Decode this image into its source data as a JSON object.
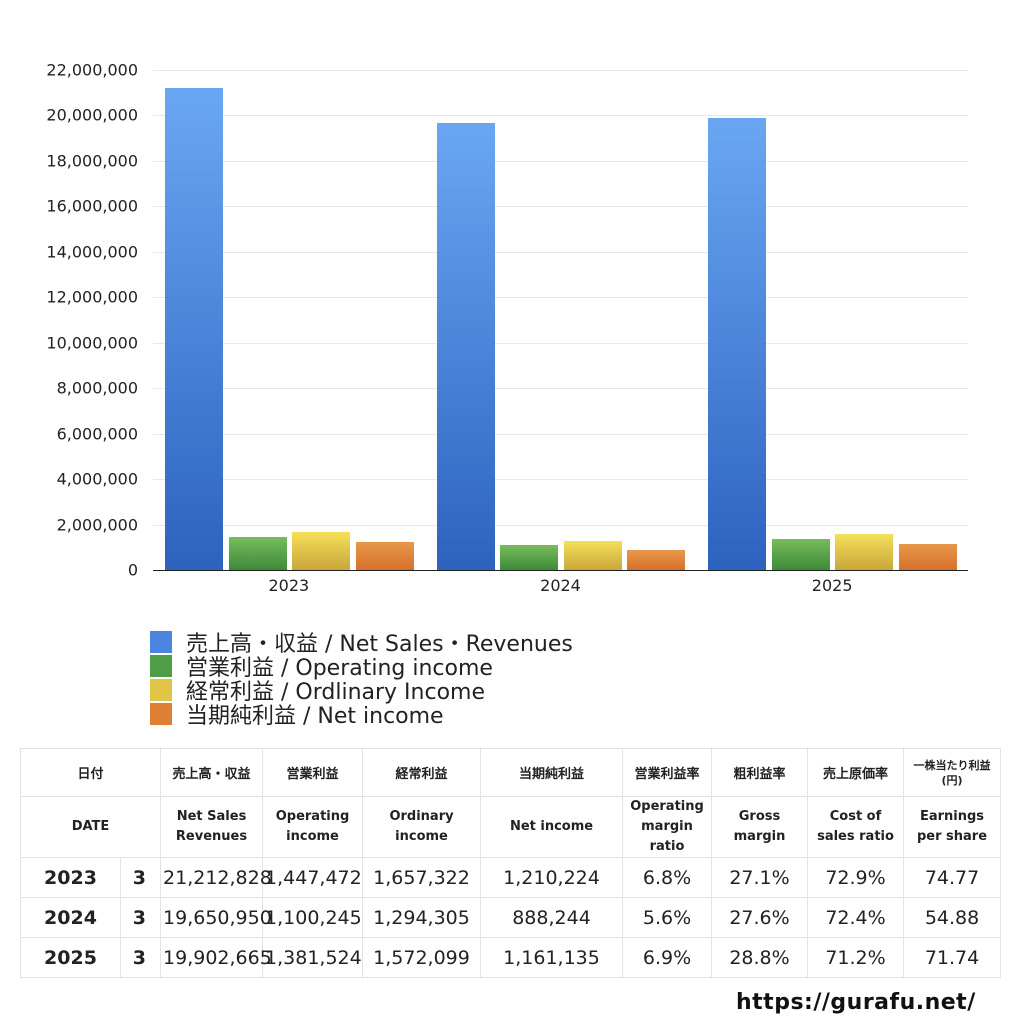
{
  "chart_data": {
    "type": "bar",
    "title": "",
    "xlabel": "",
    "ylabel": "",
    "categories": [
      "2023",
      "2024",
      "2025"
    ],
    "series": [
      {
        "name": "売上高・収益 / Net Sales・Revenues",
        "color_top": "#6aa7f2",
        "color_bottom": "#2d62bf",
        "values": [
          21212828,
          19650950,
          19902665
        ]
      },
      {
        "name": "営業利益 / Operating income",
        "color_top": "#78bc5c",
        "color_bottom": "#3d8a3a",
        "values": [
          1447472,
          1100245,
          1381524
        ]
      },
      {
        "name": "経常利益 / Ordlinary Income",
        "color_top": "#f5e05a",
        "color_bottom": "#c9a63a",
        "values": [
          1657322,
          1294305,
          1572099
        ]
      },
      {
        "name": "当期純利益 / Net income",
        "color_top": "#e8984a",
        "color_bottom": "#d6702c",
        "values": [
          1210224,
          888244,
          1161135
        ]
      }
    ],
    "ylim": [
      0,
      22000000
    ],
    "yticks": [
      "0",
      "2,000,000",
      "4,000,000",
      "6,000,000",
      "8,000,000",
      "10,000,000",
      "12,000,000",
      "14,000,000",
      "16,000,000",
      "18,000,000",
      "20,000,000",
      "22,000,000"
    ],
    "grid": true,
    "legend_position": "bottom-left"
  },
  "legend": [
    {
      "label": "売上高・収益 / Net Sales・Revenues",
      "color": "#4a86e0"
    },
    {
      "label": "営業利益 / Operating income",
      "color": "#4f9e45"
    },
    {
      "label": "経常利益 / Ordlinary Income",
      "color": "#e0c546"
    },
    {
      "label": "当期純利益 / Net income",
      "color": "#e07f36"
    }
  ],
  "table": {
    "headers_ja": [
      "日付",
      "売上高・収益",
      "営業利益",
      "経常利益",
      "当期純利益",
      "営業利益率",
      "粗利益率",
      "売上原価率",
      "一株当たり利益",
      "(円)"
    ],
    "headers_en": [
      "DATE",
      "Net Sales",
      "Revenues",
      "Operating",
      "income",
      "Ordinary",
      "income",
      "Net income",
      "Operating",
      "margin",
      "ratio",
      "Gross",
      "margin",
      "Cost of",
      "sales ratio",
      "Earnings",
      "per share"
    ],
    "rows": [
      {
        "year": "2023",
        "month": "3",
        "net_sales": "21,212,828",
        "operating_income": "1,447,472",
        "ordinary_income": "1,657,322",
        "net_income": "1,210,224",
        "operating_margin": "6.8%",
        "gross_margin": "27.1%",
        "cost_of_sales_ratio": "72.9%",
        "eps": "74.77"
      },
      {
        "year": "2024",
        "month": "3",
        "net_sales": "19,650,950",
        "operating_income": "1,100,245",
        "ordinary_income": "1,294,305",
        "net_income": "888,244",
        "operating_margin": "5.6%",
        "gross_margin": "27.6%",
        "cost_of_sales_ratio": "72.4%",
        "eps": "54.88"
      },
      {
        "year": "2025",
        "month": "3",
        "net_sales": "19,902,665",
        "operating_income": "1,381,524",
        "ordinary_income": "1,572,099",
        "net_income": "1,161,135",
        "operating_margin": "6.9%",
        "gross_margin": "28.8%",
        "cost_of_sales_ratio": "71.2%",
        "eps": "71.74"
      }
    ]
  },
  "source": "https://gurafu.net/"
}
